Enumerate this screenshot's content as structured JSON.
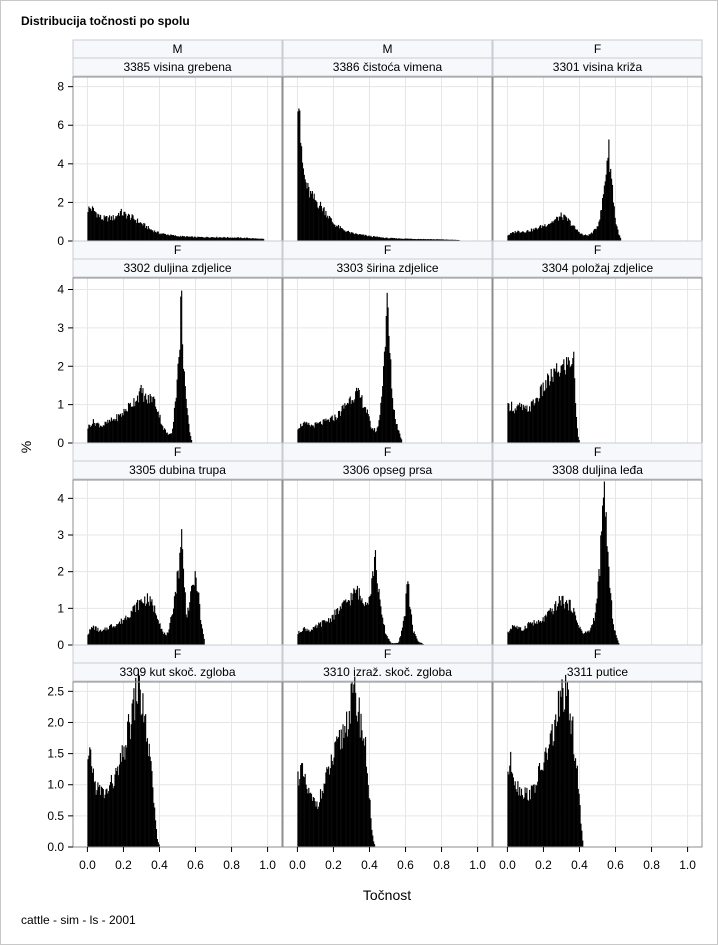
{
  "page": {
    "title": "Distribucija točnosti po spolu",
    "footnote": "cattle - sim - ls - 2001"
  },
  "chart_data": {
    "type": "bar",
    "xlabel": "Točnost",
    "ylabel": "%",
    "xlim": [
      -0.08,
      1.08
    ],
    "x_ticks": [
      "0.0",
      "0.2",
      "0.4",
      "0.6",
      "0.8",
      "1.0"
    ],
    "x_tick_values": [
      0,
      0.2,
      0.4,
      0.6,
      0.8,
      1.0
    ],
    "grid": true,
    "rows": [
      {
        "ylim": [
          0,
          8.5
        ],
        "y_ticks": [
          "0",
          "2",
          "4",
          "6",
          "8"
        ],
        "y_tick_values": [
          0,
          2,
          4,
          6,
          8
        ]
      },
      {
        "ylim": [
          0,
          4.3
        ],
        "y_ticks": [
          "0",
          "1",
          "2",
          "3",
          "4"
        ],
        "y_tick_values": [
          0,
          1,
          2,
          3,
          4
        ]
      },
      {
        "ylim": [
          0,
          4.5
        ],
        "y_ticks": [
          "0",
          "1",
          "2",
          "3",
          "4"
        ],
        "y_tick_values": [
          0,
          1,
          2,
          3,
          4
        ]
      },
      {
        "ylim": [
          0,
          2.65
        ],
        "y_ticks": [
          "0.0",
          "0.5",
          "1.0",
          "1.5",
          "2.0",
          "2.5"
        ],
        "y_tick_values": [
          0,
          0.5,
          1.0,
          1.5,
          2.0,
          2.5
        ]
      }
    ],
    "panels": [
      {
        "sex": "M",
        "trait": "3385 visina grebena",
        "x_range": [
          0.0,
          0.98
        ],
        "shape": [
          [
            0.0,
            1.65
          ],
          [
            0.02,
            1.7
          ],
          [
            0.05,
            1.45
          ],
          [
            0.08,
            1.15
          ],
          [
            0.15,
            1.2
          ],
          [
            0.18,
            1.5
          ],
          [
            0.2,
            1.4
          ],
          [
            0.25,
            1.2
          ],
          [
            0.3,
            0.9
          ],
          [
            0.35,
            0.6
          ],
          [
            0.4,
            0.4
          ],
          [
            0.5,
            0.25
          ],
          [
            0.6,
            0.2
          ],
          [
            0.7,
            0.2
          ],
          [
            0.8,
            0.18
          ],
          [
            0.9,
            0.15
          ],
          [
            0.98,
            0.1
          ]
        ]
      },
      {
        "sex": "M",
        "trait": "3386 čistoća vimena",
        "x_range": [
          0.0,
          0.9
        ],
        "shape": [
          [
            0.0,
            7.8
          ],
          [
            0.01,
            7.9
          ],
          [
            0.02,
            4.5
          ],
          [
            0.04,
            3.2
          ],
          [
            0.06,
            2.6
          ],
          [
            0.08,
            2.3
          ],
          [
            0.12,
            1.9
          ],
          [
            0.15,
            1.6
          ],
          [
            0.2,
            0.9
          ],
          [
            0.25,
            0.6
          ],
          [
            0.3,
            0.4
          ],
          [
            0.4,
            0.25
          ],
          [
            0.5,
            0.15
          ],
          [
            0.6,
            0.12
          ],
          [
            0.7,
            0.1
          ],
          [
            0.8,
            0.08
          ],
          [
            0.9,
            0.05
          ]
        ]
      },
      {
        "sex": "F",
        "trait": "3301 visina križa",
        "x_range": [
          0.0,
          0.63
        ],
        "shape": [
          [
            0.0,
            0.3
          ],
          [
            0.05,
            0.5
          ],
          [
            0.1,
            0.5
          ],
          [
            0.15,
            0.6
          ],
          [
            0.2,
            0.8
          ],
          [
            0.25,
            1.0
          ],
          [
            0.3,
            1.3
          ],
          [
            0.34,
            1.05
          ],
          [
            0.38,
            0.6
          ],
          [
            0.42,
            0.3
          ],
          [
            0.45,
            0.3
          ],
          [
            0.48,
            0.5
          ],
          [
            0.5,
            0.8
          ],
          [
            0.52,
            1.5
          ],
          [
            0.54,
            3.0
          ],
          [
            0.56,
            4.9
          ],
          [
            0.58,
            3.0
          ],
          [
            0.6,
            1.0
          ],
          [
            0.62,
            0.3
          ],
          [
            0.63,
            0.1
          ]
        ]
      },
      {
        "sex": "F",
        "trait": "3302 duljina zdjelice",
        "x_range": [
          0.0,
          0.58
        ],
        "shape": [
          [
            0.0,
            0.4
          ],
          [
            0.03,
            0.55
          ],
          [
            0.08,
            0.45
          ],
          [
            0.12,
            0.55
          ],
          [
            0.18,
            0.7
          ],
          [
            0.22,
            0.9
          ],
          [
            0.26,
            1.1
          ],
          [
            0.3,
            1.35
          ],
          [
            0.33,
            1.1
          ],
          [
            0.36,
            1.2
          ],
          [
            0.38,
            1.0
          ],
          [
            0.42,
            0.4
          ],
          [
            0.45,
            0.2
          ],
          [
            0.47,
            0.3
          ],
          [
            0.49,
            1.2
          ],
          [
            0.51,
            2.3
          ],
          [
            0.52,
            4.0
          ],
          [
            0.53,
            2.4
          ],
          [
            0.55,
            0.9
          ],
          [
            0.57,
            0.2
          ],
          [
            0.58,
            0.05
          ]
        ]
      },
      {
        "sex": "F",
        "trait": "3303 širina zdjelice",
        "x_range": [
          0.0,
          0.58
        ],
        "shape": [
          [
            0.0,
            0.4
          ],
          [
            0.03,
            0.5
          ],
          [
            0.08,
            0.45
          ],
          [
            0.12,
            0.5
          ],
          [
            0.18,
            0.6
          ],
          [
            0.22,
            0.7
          ],
          [
            0.26,
            0.95
          ],
          [
            0.3,
            1.2
          ],
          [
            0.33,
            1.3
          ],
          [
            0.36,
            1.1
          ],
          [
            0.38,
            0.9
          ],
          [
            0.41,
            0.4
          ],
          [
            0.44,
            0.3
          ],
          [
            0.46,
            0.8
          ],
          [
            0.48,
            2.2
          ],
          [
            0.5,
            3.7
          ],
          [
            0.51,
            2.5
          ],
          [
            0.53,
            1.0
          ],
          [
            0.55,
            0.5
          ],
          [
            0.57,
            0.2
          ],
          [
            0.58,
            0.05
          ]
        ]
      },
      {
        "sex": "F",
        "trait": "3304 položaj zdjelice",
        "x_range": [
          0.0,
          0.4
        ],
        "shape": [
          [
            0.0,
            0.9
          ],
          [
            0.02,
            1.0
          ],
          [
            0.04,
            0.85
          ],
          [
            0.07,
            0.95
          ],
          [
            0.1,
            0.85
          ],
          [
            0.13,
            0.95
          ],
          [
            0.17,
            1.2
          ],
          [
            0.21,
            1.5
          ],
          [
            0.25,
            1.75
          ],
          [
            0.29,
            1.9
          ],
          [
            0.33,
            2.05
          ],
          [
            0.36,
            2.2
          ],
          [
            0.37,
            2.1
          ],
          [
            0.38,
            0.8
          ],
          [
            0.39,
            0.2
          ],
          [
            0.4,
            0.05
          ]
        ]
      },
      {
        "sex": "F",
        "trait": "3305 dubina trupa",
        "x_range": [
          0.0,
          0.65
        ],
        "shape": [
          [
            0.0,
            0.3
          ],
          [
            0.03,
            0.5
          ],
          [
            0.08,
            0.35
          ],
          [
            0.12,
            0.5
          ],
          [
            0.18,
            0.6
          ],
          [
            0.22,
            0.8
          ],
          [
            0.26,
            1.0
          ],
          [
            0.3,
            1.2
          ],
          [
            0.33,
            1.25
          ],
          [
            0.36,
            1.1
          ],
          [
            0.39,
            0.8
          ],
          [
            0.42,
            0.3
          ],
          [
            0.45,
            0.3
          ],
          [
            0.48,
            1.2
          ],
          [
            0.51,
            2.2
          ],
          [
            0.52,
            3.2
          ],
          [
            0.53,
            2.2
          ],
          [
            0.55,
            0.8
          ],
          [
            0.57,
            1.2
          ],
          [
            0.59,
            1.8
          ],
          [
            0.61,
            1.7
          ],
          [
            0.63,
            0.6
          ],
          [
            0.65,
            0.1
          ]
        ]
      },
      {
        "sex": "F",
        "trait": "3306 opseg prsa",
        "x_range": [
          0.0,
          0.7
        ],
        "shape": [
          [
            0.0,
            0.3
          ],
          [
            0.03,
            0.45
          ],
          [
            0.08,
            0.4
          ],
          [
            0.12,
            0.55
          ],
          [
            0.18,
            0.7
          ],
          [
            0.22,
            0.9
          ],
          [
            0.26,
            1.1
          ],
          [
            0.3,
            1.3
          ],
          [
            0.33,
            1.5
          ],
          [
            0.36,
            1.2
          ],
          [
            0.4,
            1.3
          ],
          [
            0.42,
            2.0
          ],
          [
            0.43,
            2.4
          ],
          [
            0.44,
            2.0
          ],
          [
            0.46,
            1.0
          ],
          [
            0.49,
            0.3
          ],
          [
            0.52,
            0.05
          ],
          [
            0.56,
            0.05
          ],
          [
            0.58,
            0.4
          ],
          [
            0.6,
            1.0
          ],
          [
            0.61,
            2.1
          ],
          [
            0.62,
            1.3
          ],
          [
            0.64,
            0.4
          ],
          [
            0.67,
            0.1
          ],
          [
            0.7,
            0.02
          ]
        ]
      },
      {
        "sex": "F",
        "trait": "3308 duljina leđa",
        "x_range": [
          0.0,
          0.62
        ],
        "shape": [
          [
            0.0,
            0.3
          ],
          [
            0.03,
            0.55
          ],
          [
            0.08,
            0.4
          ],
          [
            0.12,
            0.6
          ],
          [
            0.18,
            0.6
          ],
          [
            0.22,
            0.8
          ],
          [
            0.26,
            1.0
          ],
          [
            0.3,
            1.25
          ],
          [
            0.33,
            1.1
          ],
          [
            0.36,
            1.05
          ],
          [
            0.38,
            0.7
          ],
          [
            0.42,
            0.3
          ],
          [
            0.46,
            0.4
          ],
          [
            0.49,
            0.9
          ],
          [
            0.51,
            2.0
          ],
          [
            0.53,
            3.6
          ],
          [
            0.54,
            4.4
          ],
          [
            0.55,
            3.0
          ],
          [
            0.57,
            1.4
          ],
          [
            0.59,
            0.5
          ],
          [
            0.61,
            0.15
          ],
          [
            0.62,
            0.02
          ]
        ]
      },
      {
        "sex": "F",
        "trait": "3309 kut skoč. zgloba",
        "x_range": [
          0.0,
          0.4
        ],
        "shape": [
          [
            0.0,
            1.3
          ],
          [
            0.02,
            1.45
          ],
          [
            0.04,
            1.0
          ],
          [
            0.07,
            0.9
          ],
          [
            0.1,
            0.85
          ],
          [
            0.13,
            1.0
          ],
          [
            0.17,
            1.2
          ],
          [
            0.2,
            1.5
          ],
          [
            0.23,
            1.9
          ],
          [
            0.26,
            2.3
          ],
          [
            0.28,
            2.6
          ],
          [
            0.3,
            2.35
          ],
          [
            0.33,
            1.8
          ],
          [
            0.35,
            1.3
          ],
          [
            0.37,
            0.7
          ],
          [
            0.38,
            0.3
          ],
          [
            0.39,
            0.1
          ],
          [
            0.4,
            0.02
          ]
        ]
      },
      {
        "sex": "F",
        "trait": "3310 izraž. skoč. zgloba",
        "x_range": [
          0.0,
          0.43
        ],
        "shape": [
          [
            0.0,
            1.1
          ],
          [
            0.02,
            1.25
          ],
          [
            0.05,
            0.95
          ],
          [
            0.08,
            0.75
          ],
          [
            0.11,
            0.7
          ],
          [
            0.14,
            0.9
          ],
          [
            0.17,
            1.2
          ],
          [
            0.21,
            1.5
          ],
          [
            0.25,
            1.8
          ],
          [
            0.29,
            2.2
          ],
          [
            0.31,
            2.45
          ],
          [
            0.33,
            2.3
          ],
          [
            0.36,
            1.9
          ],
          [
            0.38,
            1.5
          ],
          [
            0.4,
            0.8
          ],
          [
            0.41,
            0.35
          ],
          [
            0.42,
            0.1
          ],
          [
            0.43,
            0.02
          ]
        ]
      },
      {
        "sex": "F",
        "trait": "3311 putice",
        "x_range": [
          0.0,
          0.42
        ],
        "shape": [
          [
            0.0,
            1.2
          ],
          [
            0.02,
            1.35
          ],
          [
            0.05,
            1.0
          ],
          [
            0.08,
            0.9
          ],
          [
            0.11,
            0.85
          ],
          [
            0.14,
            0.9
          ],
          [
            0.18,
            1.2
          ],
          [
            0.22,
            1.5
          ],
          [
            0.26,
            1.9
          ],
          [
            0.29,
            2.3
          ],
          [
            0.31,
            2.5
          ],
          [
            0.33,
            2.35
          ],
          [
            0.36,
            1.9
          ],
          [
            0.38,
            1.4
          ],
          [
            0.4,
            0.7
          ],
          [
            0.41,
            0.3
          ],
          [
            0.42,
            0.05
          ]
        ]
      }
    ]
  }
}
